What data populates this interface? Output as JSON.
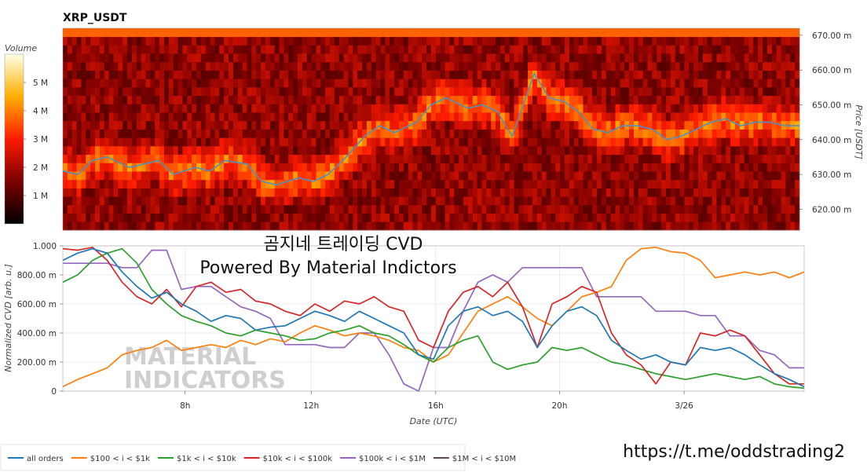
{
  "colors": {
    "all_orders": "#1f77b4",
    "band_100_1k": "#ff7f0e",
    "band_1k_10k": "#2ca02c",
    "band_10k_100k": "#d62728",
    "band_100k_1m": "#9467bd",
    "band_1m_10m": "#5a4a45",
    "price_line": "#4f8fc0"
  },
  "overlay": {
    "korean_title": "곰지네 트레이딩 CVD",
    "powered_by": "Powered By Material Indictors",
    "telegram_url": "https://t.me/oddstrading2",
    "watermark_line1": "MATERIAL",
    "watermark_line2": "INDICATORS"
  },
  "chart_data": [
    {
      "type": "heatmap",
      "title": "XRP_USDT",
      "ylabel": "Price [USDT]",
      "ylim": [
        614,
        672
      ],
      "y_ticks": [
        "620.00 m",
        "630.00 m",
        "640.00 m",
        "650.00 m",
        "660.00 m",
        "670.00 m"
      ],
      "y_tick_values": [
        620,
        630,
        640,
        650,
        660,
        670
      ],
      "colorbar": {
        "label": "Volume",
        "range": [
          0,
          6
        ],
        "ticks": [
          "1 M",
          "2 M",
          "3 M",
          "4 M",
          "5 M"
        ],
        "tick_values": [
          1,
          2,
          3,
          4,
          5
        ]
      },
      "price_series": {
        "name": "price",
        "x": [
          0,
          2,
          4,
          6,
          9,
          11,
          13,
          15,
          18,
          20,
          22,
          25,
          27,
          29,
          32,
          34,
          36,
          38,
          41,
          43,
          45,
          48,
          50,
          52,
          55,
          57,
          59,
          61,
          64,
          66,
          68,
          70,
          72,
          74,
          76,
          78,
          80,
          82,
          84,
          86,
          88,
          90,
          92,
          94,
          96,
          98,
          100
        ],
        "y": [
          631,
          630,
          634,
          635,
          632,
          633,
          634,
          630,
          632,
          631,
          634,
          633,
          628,
          627,
          629,
          628,
          630,
          634,
          641,
          644,
          642,
          645,
          650,
          652,
          649,
          650,
          648,
          641,
          659,
          652,
          651,
          648,
          643,
          642,
          644,
          644,
          643,
          640,
          641,
          643,
          645,
          646,
          644,
          645,
          645,
          644,
          644
        ]
      }
    },
    {
      "type": "line",
      "xlabel": "Date (UTC)",
      "ylabel": "Normalized CVD [arb. u.]",
      "ylim": [
        0,
        1
      ],
      "x_ticks": [
        "8h",
        "12h",
        "16h",
        "20h",
        "3/26"
      ],
      "x_tick_values": [
        16.5,
        33.5,
        50.3,
        67.0,
        83.8
      ],
      "y_ticks": [
        "0",
        "200.00 m",
        "400.00 m",
        "600.00 m",
        "800.00 m",
        "1.000"
      ],
      "y_tick_values": [
        0,
        0.2,
        0.4,
        0.6,
        0.8,
        1.0
      ],
      "series": [
        {
          "name": "all orders",
          "color_key": "all_orders",
          "x": [
            0,
            2,
            4,
            6,
            8,
            10,
            12,
            14,
            16,
            18,
            20,
            22,
            24,
            26,
            28,
            30,
            32,
            34,
            36,
            38,
            40,
            42,
            44,
            46,
            48,
            50,
            52,
            54,
            56,
            58,
            60,
            62,
            64,
            66,
            68,
            70,
            72,
            74,
            76,
            78,
            80,
            82,
            84,
            86,
            88,
            90,
            92,
            94,
            96,
            98,
            100
          ],
          "y": [
            0.9,
            0.95,
            0.98,
            0.95,
            0.82,
            0.72,
            0.64,
            0.68,
            0.6,
            0.55,
            0.48,
            0.52,
            0.5,
            0.42,
            0.44,
            0.45,
            0.5,
            0.55,
            0.52,
            0.48,
            0.55,
            0.5,
            0.45,
            0.4,
            0.25,
            0.22,
            0.45,
            0.55,
            0.58,
            0.52,
            0.55,
            0.48,
            0.3,
            0.45,
            0.55,
            0.58,
            0.52,
            0.35,
            0.28,
            0.22,
            0.25,
            0.2,
            0.18,
            0.3,
            0.28,
            0.3,
            0.25,
            0.18,
            0.12,
            0.08,
            0.03
          ]
        },
        {
          "name": "$100 < i < $1k",
          "color_key": "band_100_1k",
          "x": [
            0,
            2,
            4,
            6,
            8,
            10,
            12,
            14,
            16,
            18,
            20,
            22,
            24,
            26,
            28,
            30,
            32,
            34,
            36,
            38,
            40,
            42,
            44,
            46,
            48,
            50,
            52,
            54,
            56,
            58,
            60,
            62,
            64,
            66,
            68,
            70,
            72,
            74,
            76,
            78,
            80,
            82,
            84,
            86,
            88,
            90,
            92,
            94,
            96,
            98,
            100
          ],
          "y": [
            0.03,
            0.08,
            0.12,
            0.16,
            0.25,
            0.28,
            0.3,
            0.35,
            0.28,
            0.3,
            0.32,
            0.3,
            0.35,
            0.32,
            0.36,
            0.34,
            0.4,
            0.45,
            0.42,
            0.38,
            0.4,
            0.38,
            0.35,
            0.3,
            0.28,
            0.2,
            0.25,
            0.4,
            0.55,
            0.6,
            0.65,
            0.58,
            0.5,
            0.45,
            0.55,
            0.65,
            0.68,
            0.72,
            0.9,
            0.98,
            0.99,
            0.96,
            0.95,
            0.9,
            0.78,
            0.8,
            0.82,
            0.8,
            0.82,
            0.78,
            0.82
          ]
        },
        {
          "name": "$1k < i < $10k",
          "color_key": "band_1k_10k",
          "x": [
            0,
            2,
            4,
            6,
            8,
            10,
            12,
            14,
            16,
            18,
            20,
            22,
            24,
            26,
            28,
            30,
            32,
            34,
            36,
            38,
            40,
            42,
            44,
            46,
            48,
            50,
            52,
            54,
            56,
            58,
            60,
            62,
            64,
            66,
            68,
            70,
            72,
            74,
            76,
            78,
            80,
            82,
            84,
            86,
            88,
            90,
            92,
            94,
            96,
            98,
            100
          ],
          "y": [
            0.75,
            0.8,
            0.9,
            0.95,
            0.98,
            0.88,
            0.7,
            0.6,
            0.52,
            0.48,
            0.45,
            0.4,
            0.38,
            0.42,
            0.4,
            0.38,
            0.35,
            0.36,
            0.4,
            0.42,
            0.45,
            0.4,
            0.38,
            0.32,
            0.25,
            0.2,
            0.3,
            0.35,
            0.38,
            0.2,
            0.15,
            0.18,
            0.2,
            0.3,
            0.28,
            0.3,
            0.25,
            0.2,
            0.18,
            0.15,
            0.12,
            0.1,
            0.08,
            0.1,
            0.12,
            0.1,
            0.08,
            0.1,
            0.05,
            0.03,
            0.02
          ]
        },
        {
          "name": "$10k < i < $100k",
          "color_key": "band_10k_100k",
          "x": [
            0,
            2,
            4,
            6,
            8,
            10,
            12,
            14,
            16,
            18,
            20,
            22,
            24,
            26,
            28,
            30,
            32,
            34,
            36,
            38,
            40,
            42,
            44,
            46,
            48,
            50,
            52,
            54,
            56,
            58,
            60,
            62,
            64,
            66,
            68,
            70,
            72,
            74,
            76,
            78,
            80,
            82,
            84,
            86,
            88,
            90,
            92,
            94,
            96,
            98,
            100
          ],
          "y": [
            0.98,
            0.97,
            0.99,
            0.9,
            0.75,
            0.65,
            0.6,
            0.7,
            0.58,
            0.72,
            0.75,
            0.68,
            0.7,
            0.62,
            0.6,
            0.55,
            0.52,
            0.6,
            0.55,
            0.62,
            0.6,
            0.65,
            0.58,
            0.55,
            0.35,
            0.3,
            0.55,
            0.68,
            0.72,
            0.65,
            0.75,
            0.58,
            0.3,
            0.6,
            0.65,
            0.72,
            0.68,
            0.4,
            0.25,
            0.18,
            0.05,
            0.2,
            0.18,
            0.4,
            0.38,
            0.42,
            0.38,
            0.25,
            0.12,
            0.05,
            0.05
          ]
        },
        {
          "name": "$100k < i < $1M",
          "color_key": "band_100k_1m",
          "x": [
            0,
            2,
            4,
            6,
            8,
            10,
            12,
            14,
            16,
            18,
            20,
            22,
            24,
            26,
            28,
            30,
            32,
            34,
            36,
            38,
            40,
            42,
            44,
            46,
            48,
            50,
            52,
            54,
            56,
            58,
            60,
            62,
            64,
            66,
            68,
            70,
            72,
            74,
            76,
            78,
            80,
            82,
            84,
            86,
            88,
            90,
            92,
            94,
            96,
            98,
            100
          ],
          "y": [
            0.88,
            0.88,
            0.88,
            0.88,
            0.85,
            0.85,
            0.97,
            0.97,
            0.7,
            0.72,
            0.72,
            0.65,
            0.58,
            0.55,
            0.5,
            0.32,
            0.32,
            0.32,
            0.3,
            0.3,
            0.4,
            0.4,
            0.25,
            0.05,
            0.0,
            0.3,
            0.3,
            0.55,
            0.75,
            0.8,
            0.75,
            0.85,
            0.85,
            0.85,
            0.85,
            0.85,
            0.65,
            0.65,
            0.65,
            0.65,
            0.55,
            0.55,
            0.55,
            0.52,
            0.52,
            0.38,
            0.38,
            0.28,
            0.25,
            0.16,
            0.16
          ]
        },
        {
          "name": "$1M < i < $10M",
          "color_key": "band_1m_10m",
          "x": [],
          "y": []
        }
      ]
    }
  ]
}
